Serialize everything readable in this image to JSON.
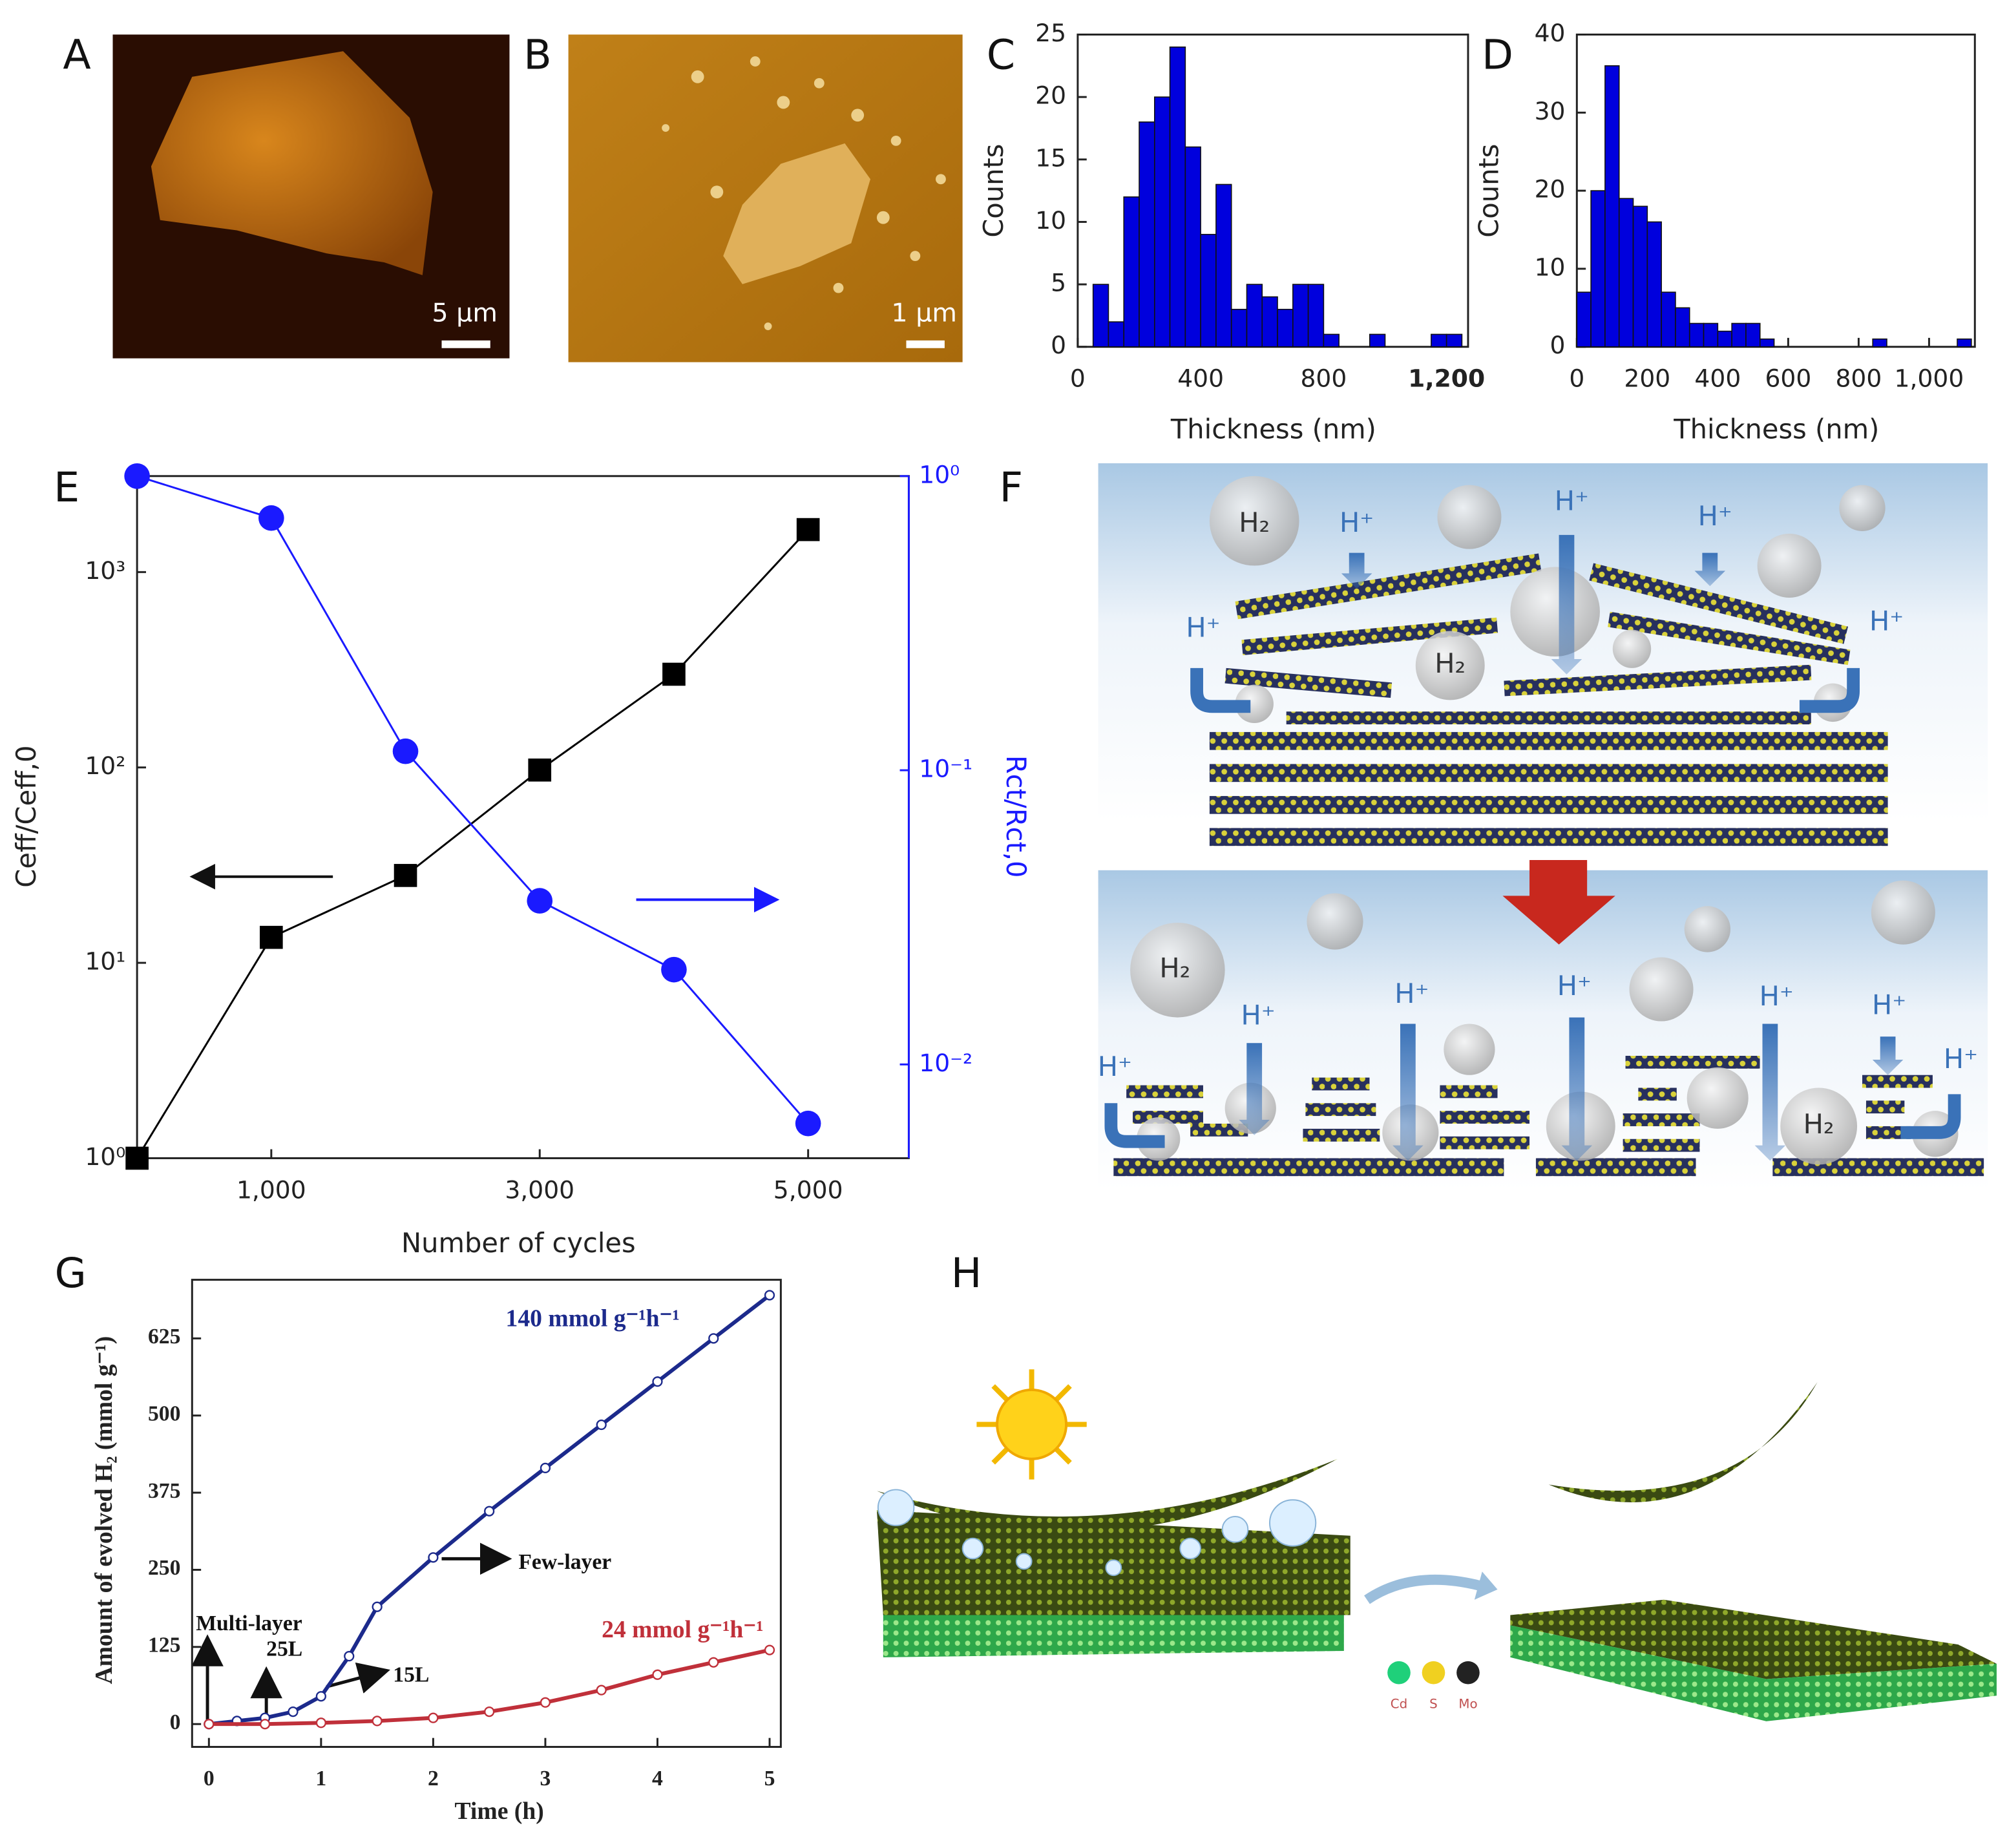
{
  "figure": {
    "panel_labels": [
      "A",
      "B",
      "C",
      "D",
      "E",
      "F",
      "G",
      "H"
    ]
  },
  "image_a": {
    "scale_bar": "5 µm"
  },
  "image_b": {
    "scale_bar": "1 µm"
  },
  "diagram_f": {
    "labels": [
      "H₂",
      "H⁺",
      "H⁺",
      "H⁺",
      "H⁺",
      "H₂",
      "H⁺",
      "H₂",
      "H⁺",
      "H⁺",
      "H⁺",
      "H⁺",
      "H⁺",
      "H⁺",
      "H⁺",
      "H₂"
    ]
  },
  "diagram_h": {
    "legend": [
      "Cd",
      "S",
      "Mo"
    ]
  },
  "chart_data": [
    {
      "type": "histogram",
      "bins": [
        50,
        100,
        150,
        200,
        250,
        300,
        350,
        400,
        450,
        500,
        550,
        600,
        650,
        700,
        750,
        800,
        850,
        900,
        950,
        1000,
        1050,
        1100,
        1150,
        1200,
        1250
      ],
      "counts": [
        5,
        2,
        12,
        18,
        20,
        24,
        16,
        9,
        13,
        3,
        5,
        4,
        3,
        5,
        5,
        1,
        0,
        0,
        1,
        0,
        0,
        0,
        1,
        1
      ],
      "color": "#0000dd",
      "xlim": [
        0,
        1270
      ],
      "xticks": [
        0,
        400,
        800,
        {
          "value": 1200,
          "label": "1,200"
        }
      ],
      "ylim": [
        0,
        25
      ],
      "yticks": [
        0,
        5,
        10,
        15,
        20,
        25
      ],
      "xlabel": "Thickness (nm)",
      "ylabel": "Counts"
    },
    {
      "type": "histogram",
      "bins": [
        0,
        40,
        80,
        120,
        160,
        200,
        240,
        280,
        320,
        360,
        400,
        440,
        480,
        520,
        560,
        600,
        640,
        680,
        720,
        760,
        800,
        840,
        880,
        920,
        960,
        1000,
        1040,
        1080,
        1120
      ],
      "counts": [
        7,
        20,
        36,
        19,
        18,
        16,
        7,
        5,
        3,
        3,
        2,
        3,
        3,
        1,
        0,
        0,
        0,
        0,
        0,
        0,
        0,
        1,
        0,
        0,
        0,
        0,
        0,
        1
      ],
      "color": "#0000dd",
      "xlim": [
        0,
        1130
      ],
      "xticks": [
        0,
        200,
        400,
        600,
        800,
        {
          "value": 1000,
          "label": "1,000"
        }
      ],
      "ylim": [
        0,
        40
      ],
      "yticks": [
        0,
        10,
        20,
        30,
        40
      ],
      "xlabel": "Thickness (nm)",
      "ylabel": "Counts"
    },
    {
      "type": "line",
      "log_y": true,
      "log_y2": true,
      "x": [
        0,
        1000,
        2000,
        3000,
        4000,
        5000
      ],
      "xlim": [
        0,
        5750
      ],
      "xticks": [
        {
          "value": 1000,
          "label": "1,000"
        },
        {
          "value": 3000,
          "label": "3,000"
        },
        {
          "value": 5000,
          "label": "5,000"
        }
      ],
      "ylim": [
        1,
        3100
      ],
      "yticks": [
        {
          "value": 1,
          "label": "10⁰"
        },
        {
          "value": 10,
          "label": "10¹"
        },
        {
          "value": 100,
          "label": "10²"
        },
        {
          "value": 1000,
          "label": "10³"
        }
      ],
      "y2lim": [
        0.0048,
        1
      ],
      "y2ticks": [
        {
          "value": 1,
          "label": "10⁰"
        },
        {
          "value": 0.1,
          "label": "10⁻¹"
        },
        {
          "value": 0.01,
          "label": "10⁻²"
        }
      ],
      "xlabel": "Number of cycles",
      "ylabel": "Ceff/Ceff,0",
      "y2label": "Rct/Rct,0",
      "series": [
        {
          "color": "#000000",
          "marker": "square",
          "values": [
            1,
            13.5,
            28,
            97,
            300,
            1650
          ]
        },
        {
          "color": "#1a1aff",
          "marker": "circle",
          "axis": "y2",
          "values": [
            1,
            0.72,
            0.116,
            0.036,
            0.021,
            0.0063
          ]
        }
      ]
    },
    {
      "type": "line",
      "xlim": [
        -0.15,
        5.1
      ],
      "xticks": [
        0,
        1,
        2,
        3,
        4,
        5
      ],
      "ylim": [
        -37,
        720
      ],
      "yticks": [
        0,
        125,
        250,
        375,
        500,
        625
      ],
      "xlabel": "Time (h)",
      "ylabel": "Amount of evolved H₂ (mmol g⁻¹)",
      "series": [
        {
          "color": "#1c2a8c",
          "marker": "circle",
          "x": [
            0,
            0.25,
            0.5,
            0.75,
            1,
            1.25,
            1.5,
            2,
            2.5,
            3,
            3.5,
            4,
            4.5,
            5
          ],
          "values": [
            0,
            5,
            10,
            20,
            45,
            110,
            190,
            270,
            345,
            415,
            485,
            555,
            625,
            695
          ]
        },
        {
          "color": "#c0303a",
          "marker": "circle",
          "x": [
            0,
            0.5,
            1,
            1.5,
            2,
            2.5,
            3,
            3.5,
            4,
            4.5,
            5
          ],
          "values": [
            0,
            0,
            2,
            5,
            10,
            20,
            35,
            55,
            80,
            100,
            120
          ]
        }
      ],
      "annotations": [
        "140 mmol g⁻¹h⁻¹",
        "24 mmol g⁻¹h⁻¹",
        "Few-layer",
        "Multi-layer",
        "25L",
        "15L"
      ]
    }
  ]
}
